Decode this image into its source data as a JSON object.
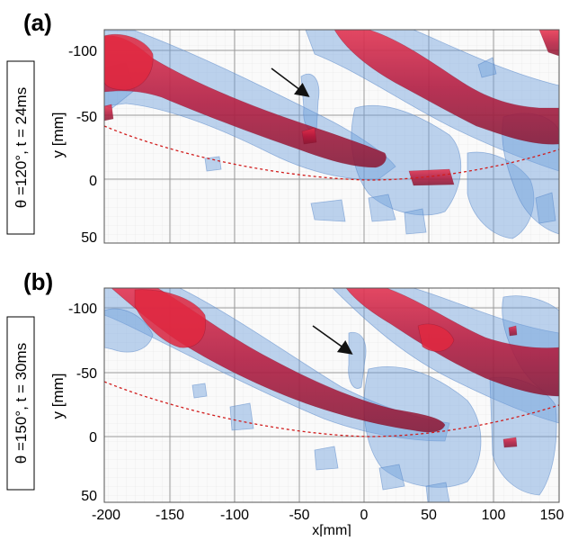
{
  "panels": [
    {
      "id": "a",
      "letter": "(a)",
      "condition": "θ =120°, t = 24ms",
      "ylabel": "y [mm]",
      "yticks": [
        "-100",
        "-50",
        "0",
        "50"
      ]
    },
    {
      "id": "b",
      "letter": "(b)",
      "condition": "θ =150°, t = 30ms",
      "ylabel": "y [mm]",
      "yticks": [
        "-100",
        "-50",
        "0",
        "50"
      ]
    }
  ],
  "xaxis": {
    "label": "x[mm]",
    "ticks": [
      "-200",
      "-150",
      "-100",
      "-50",
      "0",
      "50",
      "100",
      "150"
    ]
  },
  "colors": {
    "vortex_core": "#c3183a",
    "iso_surface": "#6f9fdc",
    "trajectory": "#d11c1c",
    "arrow": "#111111",
    "grid": "#9a9a9a"
  }
}
